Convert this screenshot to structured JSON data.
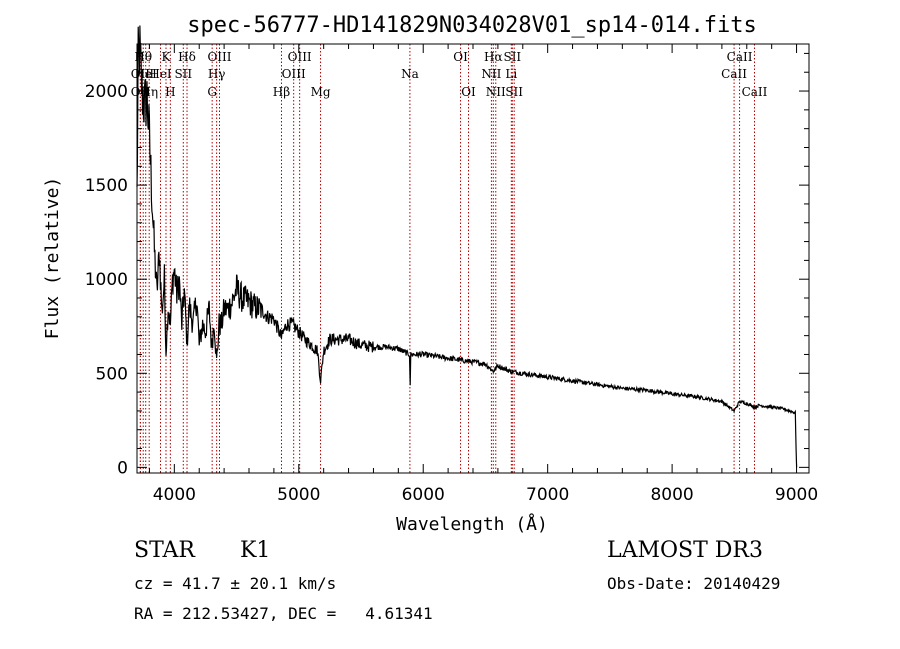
{
  "chart_data": {
    "type": "line",
    "title": "spec-56777-HD141829N034028V01_sp14-014.fits",
    "xlabel": "Wavelength (Å)",
    "ylabel": "Flux (relative)",
    "xlim": [
      3700,
      9100
    ],
    "ylim": [
      -30,
      2250
    ],
    "xticks": [
      4000,
      5000,
      6000,
      7000,
      8000,
      9000
    ],
    "yticks": [
      0,
      500,
      1000,
      1500,
      2000
    ],
    "xtick_labels": [
      "4000",
      "5000",
      "6000",
      "7000",
      "8000",
      "9000"
    ],
    "ytick_labels": [
      "0",
      "500",
      "1000",
      "1500",
      "2000"
    ],
    "series": [
      {
        "name": "spectrum",
        "x": [
          3700,
          3710,
          3720,
          3730,
          3740,
          3760,
          3780,
          3800,
          3820,
          3840,
          3860,
          3880,
          3900,
          3920,
          3933,
          3950,
          3968,
          3985,
          4000,
          4020,
          4040,
          4060,
          4080,
          4102,
          4120,
          4150,
          4180,
          4200,
          4227,
          4250,
          4280,
          4300,
          4320,
          4340,
          4360,
          4380,
          4400,
          4430,
          4460,
          4500,
          4530,
          4560,
          4600,
          4650,
          4700,
          4750,
          4800,
          4861,
          4900,
          4950,
          5000,
          5050,
          5100,
          5150,
          5175,
          5200,
          5250,
          5300,
          5400,
          5500,
          5600,
          5700,
          5800,
          5890,
          5895,
          5900,
          6000,
          6100,
          6200,
          6300,
          6400,
          6500,
          6563,
          6600,
          6700,
          6800,
          7000,
          7200,
          7400,
          7600,
          7800,
          8000,
          8200,
          8400,
          8498,
          8542,
          8600,
          8662,
          8700,
          8800,
          8900,
          8990,
          9000
        ],
        "y": [
          1450,
          2150,
          2230,
          2130,
          2000,
          1920,
          1970,
          1750,
          1450,
          1150,
          930,
          1150,
          820,
          1000,
          620,
          860,
          760,
          990,
          1050,
          920,
          990,
          760,
          940,
          660,
          860,
          760,
          900,
          650,
          760,
          720,
          840,
          640,
          780,
          560,
          760,
          760,
          840,
          840,
          870,
          950,
          910,
          890,
          880,
          850,
          840,
          800,
          790,
          690,
          760,
          760,
          720,
          680,
          650,
          620,
          460,
          620,
          680,
          680,
          680,
          650,
          640,
          640,
          630,
          600,
          440,
          600,
          600,
          590,
          580,
          570,
          560,
          550,
          510,
          540,
          510,
          500,
          480,
          460,
          440,
          420,
          410,
          390,
          375,
          350,
          300,
          350,
          340,
          320,
          330,
          320,
          310,
          290,
          0
        ]
      }
    ],
    "lines": [
      {
        "wave": 3727,
        "label": "OII",
        "row": 2
      },
      {
        "wave": 3727,
        "label": "OII",
        "row": 3
      },
      {
        "wave": 3750,
        "label": "Hθ",
        "row": 1
      },
      {
        "wave": 3770,
        "label": "HeI",
        "row": 2
      },
      {
        "wave": 3798,
        "label": "Hη",
        "row": 3
      },
      {
        "wave": 3889,
        "label": "HeI",
        "row": 2
      },
      {
        "wave": 3933,
        "label": "K",
        "row": 1
      },
      {
        "wave": 3968,
        "label": "H",
        "row": 3
      },
      {
        "wave": 4072,
        "label": "SII",
        "row": 2
      },
      {
        "wave": 4102,
        "label": "Hδ",
        "row": 1
      },
      {
        "wave": 4304,
        "label": "G",
        "row": 3
      },
      {
        "wave": 4340,
        "label": "Hγ",
        "row": 2
      },
      {
        "wave": 4363,
        "label": "OIII",
        "row": 1
      },
      {
        "wave": 4861,
        "label": "Hβ",
        "row": 3
      },
      {
        "wave": 4959,
        "label": "OIII",
        "row": 2
      },
      {
        "wave": 5007,
        "label": "OIII",
        "row": 1
      },
      {
        "wave": 5175,
        "label": "Mg",
        "row": 3
      },
      {
        "wave": 5893,
        "label": "Na",
        "row": 2
      },
      {
        "wave": 6300,
        "label": "OI",
        "row": 1
      },
      {
        "wave": 6364,
        "label": "OI",
        "row": 3
      },
      {
        "wave": 6548,
        "label": "NII",
        "row": 2
      },
      {
        "wave": 6563,
        "label": "Hα",
        "row": 1
      },
      {
        "wave": 6583,
        "label": "NII",
        "row": 3
      },
      {
        "wave": 6708,
        "label": "Li",
        "row": 2
      },
      {
        "wave": 6716,
        "label": "SII",
        "row": 1
      },
      {
        "wave": 6731,
        "label": "SII",
        "row": 3
      },
      {
        "wave": 8498,
        "label": "CaII",
        "row": 2
      },
      {
        "wave": 8542,
        "label": "CaII",
        "row": 1
      },
      {
        "wave": 8662,
        "label": "CaII",
        "row": 3
      }
    ],
    "line_color": "#b00000",
    "curve_color": "#000000"
  },
  "info": {
    "class": "STAR",
    "subclass": "K1",
    "survey": "LAMOST DR3",
    "cz": "cz = 41.7 ± 20.1 km/s",
    "obs_date": "Obs-Date: 20140429",
    "coords": "RA = 212.53427, DEC =   4.61341"
  }
}
